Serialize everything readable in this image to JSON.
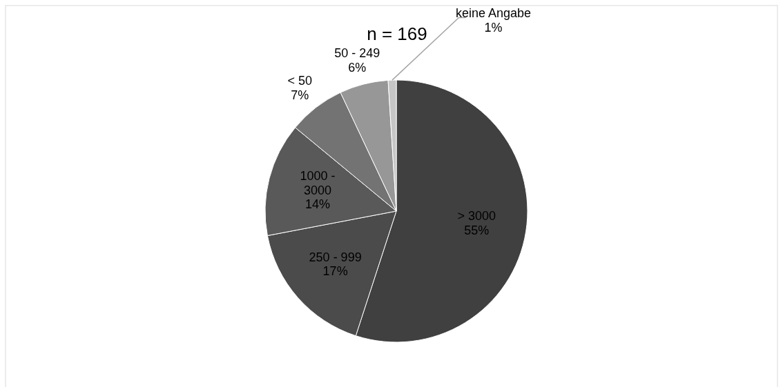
{
  "chart_data": {
    "type": "pie",
    "title": "n = 169",
    "categories": [
      "> 3000",
      "250 - 999",
      "1000 - 3000",
      "< 50",
      "50 - 249",
      "keine Angabe"
    ],
    "values": [
      55,
      17,
      14,
      7,
      6,
      1
    ],
    "colors": [
      "#404040",
      "#4b4b4b",
      "#595959",
      "#737373",
      "#979797",
      "#c6c6c6"
    ],
    "value_labels": [
      "55%",
      "17%",
      "14%",
      "7%",
      "6%",
      "1%"
    ]
  }
}
